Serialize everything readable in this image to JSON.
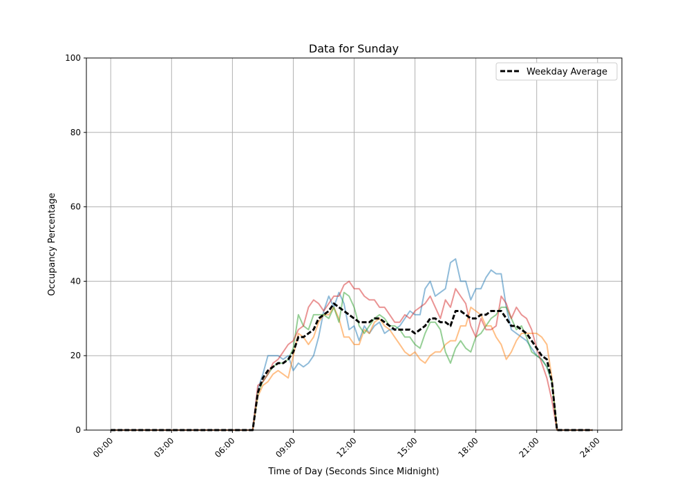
{
  "chart_data": {
    "type": "line",
    "title": "Data for Sunday",
    "xlabel": "Time of Day (Seconds Since Midnight)",
    "ylabel": "Occupancy Percentage",
    "xlim_hours": [
      -1.2,
      25.2
    ],
    "ylim": [
      0,
      100
    ],
    "grid": true,
    "legend_placement": "top-right",
    "x_ticks": [
      "00:00",
      "03:00",
      "06:00",
      "09:00",
      "12:00",
      "15:00",
      "18:00",
      "21:00",
      "24:00"
    ],
    "y_ticks": [
      0,
      20,
      40,
      60,
      80,
      100
    ],
    "x": [
      "00:00",
      "06:45",
      "07:00",
      "07:15",
      "07:30",
      "07:45",
      "08:00",
      "08:15",
      "08:30",
      "08:45",
      "09:00",
      "09:15",
      "09:30",
      "09:45",
      "10:00",
      "10:15",
      "10:30",
      "10:45",
      "11:00",
      "11:15",
      "11:30",
      "11:45",
      "12:00",
      "12:15",
      "12:30",
      "12:45",
      "13:00",
      "13:15",
      "13:30",
      "13:45",
      "14:00",
      "14:15",
      "14:30",
      "14:45",
      "15:00",
      "15:15",
      "15:30",
      "15:45",
      "16:00",
      "16:15",
      "16:30",
      "16:45",
      "17:00",
      "17:15",
      "17:30",
      "17:45",
      "18:00",
      "18:15",
      "18:30",
      "18:45",
      "19:00",
      "19:15",
      "19:30",
      "19:45",
      "20:00",
      "20:15",
      "20:30",
      "20:45",
      "21:00",
      "21:15",
      "21:30",
      "21:45",
      "22:00",
      "23:45"
    ],
    "series": [
      {
        "color": "#1f77b4",
        "style": "solid",
        "values": [
          0,
          0,
          0,
          11,
          15,
          20,
          20,
          20,
          19,
          20,
          16,
          18,
          17,
          18,
          20,
          25,
          32,
          36,
          33,
          37,
          34,
          27,
          28,
          24,
          28,
          26,
          28,
          29,
          26,
          27,
          27,
          28,
          30,
          32,
          31,
          31,
          38,
          40,
          36,
          37,
          38,
          45,
          46,
          40,
          40,
          35,
          38,
          38,
          41,
          43,
          42,
          42,
          33,
          27,
          26,
          25,
          24,
          22,
          20,
          19,
          17,
          13,
          0,
          0
        ]
      },
      {
        "color": "#ff7f0e",
        "style": "solid",
        "values": [
          0,
          0,
          0,
          9,
          12,
          13,
          15,
          16,
          15,
          14,
          20,
          26,
          25,
          23,
          25,
          29,
          31,
          31,
          33,
          30,
          25,
          25,
          23,
          23,
          27,
          26,
          29,
          30,
          28,
          27,
          25,
          23,
          21,
          20,
          21,
          19,
          18,
          20,
          21,
          21,
          23,
          24,
          24,
          28,
          28,
          33,
          32,
          31,
          28,
          28,
          25,
          23,
          19,
          21,
          24,
          26,
          26,
          26,
          26,
          25,
          23,
          14,
          0,
          0
        ]
      },
      {
        "color": "#2ca02c",
        "style": "solid",
        "values": [
          0,
          0,
          0,
          10,
          13,
          15,
          17,
          18,
          18,
          19,
          22,
          31,
          28,
          27,
          31,
          31,
          31,
          30,
          33,
          29,
          37,
          36,
          33,
          28,
          26,
          28,
          30,
          31,
          30,
          28,
          28,
          27,
          25,
          25,
          23,
          22,
          26,
          29,
          29,
          27,
          21,
          18,
          22,
          24,
          22,
          21,
          25,
          26,
          28,
          30,
          31,
          33,
          33,
          30,
          27,
          28,
          25,
          21,
          20,
          19,
          17,
          13,
          0,
          0
        ]
      },
      {
        "color": "#d62728",
        "style": "solid",
        "values": [
          0,
          0,
          0,
          12,
          13,
          15,
          18,
          19,
          21,
          23,
          24,
          27,
          28,
          33,
          35,
          34,
          32,
          34,
          36,
          36,
          39,
          40,
          38,
          38,
          36,
          35,
          35,
          33,
          33,
          31,
          29,
          29,
          31,
          30,
          32,
          33,
          34,
          36,
          33,
          30,
          35,
          33,
          38,
          36,
          34,
          28,
          25,
          30,
          27,
          27,
          28,
          36,
          34,
          30,
          33,
          31,
          30,
          27,
          22,
          18,
          14,
          8,
          0,
          0
        ]
      },
      {
        "name": "Weekday Average",
        "color": "#000000",
        "style": "dashed",
        "values": [
          0,
          0,
          0,
          10,
          14,
          16,
          17,
          18,
          18,
          19,
          21,
          25,
          25,
          26,
          27,
          30,
          31,
          32,
          34,
          33,
          32,
          31,
          30,
          29,
          29,
          29,
          30,
          30,
          29,
          28,
          27,
          27,
          27,
          27,
          26,
          27,
          28,
          30,
          30,
          29,
          29,
          28,
          32,
          32,
          31,
          30,
          30,
          31,
          31,
          32,
          32,
          32,
          30,
          28,
          28,
          27,
          26,
          24,
          22,
          20,
          19,
          13,
          0,
          0
        ]
      }
    ]
  }
}
